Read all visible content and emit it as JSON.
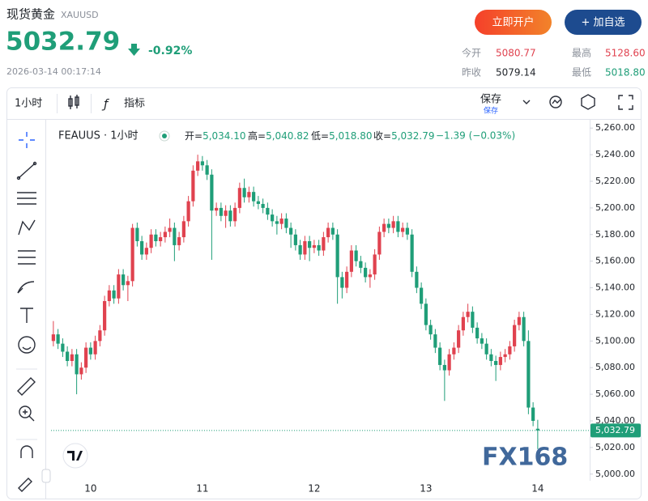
{
  "header": {
    "title": "现货黄金",
    "symbol": "XAUUSD",
    "price": "5032.79",
    "change": "-0.92%",
    "timestamp": "2026-03-14 00:17:14",
    "buttons": [
      "立即开户",
      "+ 加自选"
    ],
    "stats": [
      {
        "label": "今开",
        "value": "5080.77"
      },
      {
        "label": "最高",
        "value": "5128.60"
      },
      {
        "label": "昨收",
        "value": "5079.14"
      },
      {
        "label": "最低",
        "value": "5018.80"
      }
    ]
  },
  "toolbar": {
    "interval": "1小时",
    "indicators": "指标",
    "save": "保存",
    "save_sub": "保存"
  },
  "legend": {
    "symbol": "FEAUUS · 1小时",
    "ohlc": [
      {
        "label": "开=",
        "value": "5,034.10"
      },
      {
        "label": "高=",
        "value": "5,040.82"
      },
      {
        "label": "低=",
        "value": "5,018.80"
      },
      {
        "label": "收=",
        "value": "5,032.79"
      }
    ],
    "change": "−1.39 (−0.03%)"
  },
  "watermark": "FX168",
  "chart_data": {
    "type": "candlestick",
    "up_color": "#e0424f",
    "down_color": "#1f9e78",
    "categories": [
      null,
      null,
      null,
      null,
      null,
      null,
      null,
      null,
      "10",
      null,
      null,
      null,
      null,
      null,
      null,
      null,
      null,
      null,
      null,
      null,
      null,
      null,
      null,
      null,
      null,
      null,
      null,
      null,
      null,
      null,
      null,
      null,
      "11",
      null,
      null,
      null,
      null,
      null,
      null,
      null,
      null,
      null,
      null,
      null,
      null,
      null,
      null,
      null,
      null,
      null,
      null,
      null,
      null,
      null,
      null,
      null,
      "12",
      null,
      null,
      null,
      null,
      null,
      null,
      null,
      null,
      null,
      null,
      null,
      null,
      null,
      null,
      null,
      null,
      null,
      null,
      null,
      null,
      null,
      null,
      null,
      "13",
      null,
      null,
      null,
      null,
      null,
      null,
      null,
      null,
      null,
      null,
      null,
      null,
      null,
      null,
      null,
      null,
      null,
      null,
      null,
      null,
      null,
      null,
      null,
      "14"
    ],
    "open": [
      5100,
      5105,
      5098,
      5092,
      5085,
      5090,
      5075,
      5080,
      5095,
      5090,
      5100,
      5108,
      5130,
      5138,
      5132,
      5150,
      5142,
      5145,
      5185,
      5175,
      5165,
      5170,
      5180,
      5175,
      5178,
      5182,
      5185,
      5172,
      5178,
      5190,
      5205,
      5228,
      5235,
      5232,
      5225,
      5198,
      5200,
      5194,
      5198,
      5190,
      5200,
      5215,
      5208,
      5212,
      5205,
      5203,
      5200,
      5195,
      5190,
      5188,
      5192,
      5185,
      5180,
      5172,
      5165,
      5175,
      5170,
      5172,
      5168,
      5178,
      5185,
      5180,
      5148,
      5140,
      5152,
      5168,
      5160,
      5155,
      5148,
      5150,
      5165,
      5182,
      5188,
      5185,
      5190,
      5182,
      5185,
      5180,
      5152,
      5140,
      5128,
      5112,
      5105,
      5095,
      5082,
      5078,
      5090,
      5095,
      5108,
      5118,
      5122,
      5110,
      5102,
      5098,
      5090,
      5085,
      5082,
      5088,
      5090,
      5096,
      5112,
      5118,
      5100,
      5050,
      5034.1
    ],
    "high": [
      5115,
      5109,
      5102,
      5096,
      5094,
      5094,
      5084,
      5099,
      5099,
      5104,
      5112,
      5134,
      5142,
      5142,
      5154,
      5154,
      5149,
      5188,
      5189,
      5179,
      5174,
      5184,
      5184,
      5182,
      5186,
      5192,
      5189,
      5182,
      5194,
      5209,
      5232,
      5240,
      5239,
      5236,
      5229,
      5204,
      5204,
      5202,
      5202,
      5204,
      5219,
      5222,
      5216,
      5216,
      5209,
      5207,
      5204,
      5199,
      5194,
      5196,
      5196,
      5189,
      5184,
      5176,
      5179,
      5179,
      5176,
      5176,
      5182,
      5189,
      5189,
      5184,
      5152,
      5156,
      5172,
      5172,
      5164,
      5159,
      5154,
      5169,
      5186,
      5192,
      5192,
      5194,
      5194,
      5189,
      5189,
      5184,
      5156,
      5144,
      5132,
      5116,
      5109,
      5099,
      5086,
      5094,
      5099,
      5112,
      5122,
      5128,
      5126,
      5114,
      5106,
      5102,
      5094,
      5089,
      5092,
      5094,
      5100,
      5116,
      5122,
      5122,
      5108,
      5054,
      5040.82
    ],
    "low": [
      5096,
      5094,
      5088,
      5081,
      5081,
      5060,
      5071,
      5076,
      5086,
      5086,
      5096,
      5104,
      5126,
      5128,
      5128,
      5138,
      5130,
      5141,
      5171,
      5161,
      5161,
      5166,
      5171,
      5171,
      5174,
      5178,
      5160,
      5168,
      5174,
      5186,
      5201,
      5224,
      5228,
      5221,
      5161,
      5194,
      5190,
      5185,
      5186,
      5186,
      5196,
      5204,
      5204,
      5201,
      5199,
      5196,
      5191,
      5186,
      5180,
      5184,
      5181,
      5170,
      5168,
      5161,
      5161,
      5160,
      5166,
      5164,
      5164,
      5174,
      5176,
      5128,
      5132,
      5136,
      5148,
      5156,
      5151,
      5144,
      5140,
      5146,
      5161,
      5178,
      5181,
      5181,
      5178,
      5178,
      5176,
      5148,
      5136,
      5124,
      5108,
      5101,
      5091,
      5078,
      5055,
      5074,
      5086,
      5091,
      5104,
      5114,
      5106,
      5098,
      5094,
      5086,
      5081,
      5070,
      5078,
      5084,
      5086,
      5092,
      5108,
      5096,
      5045,
      5036,
      5018.8
    ],
    "close": [
      5105,
      5098,
      5092,
      5085,
      5090,
      5075,
      5080,
      5095,
      5090,
      5100,
      5108,
      5130,
      5138,
      5132,
      5150,
      5142,
      5145,
      5185,
      5175,
      5165,
      5170,
      5180,
      5175,
      5178,
      5182,
      5185,
      5172,
      5178,
      5190,
      5205,
      5228,
      5235,
      5232,
      5225,
      5198,
      5200,
      5194,
      5198,
      5190,
      5200,
      5215,
      5208,
      5212,
      5205,
      5203,
      5200,
      5195,
      5190,
      5188,
      5192,
      5185,
      5180,
      5172,
      5165,
      5175,
      5170,
      5172,
      5168,
      5178,
      5185,
      5180,
      5148,
      5140,
      5152,
      5168,
      5160,
      5155,
      5148,
      5150,
      5165,
      5182,
      5188,
      5185,
      5190,
      5182,
      5185,
      5180,
      5152,
      5140,
      5128,
      5112,
      5105,
      5095,
      5082,
      5078,
      5090,
      5095,
      5108,
      5118,
      5122,
      5110,
      5102,
      5098,
      5090,
      5085,
      5082,
      5088,
      5090,
      5096,
      5112,
      5118,
      5100,
      5050,
      5040,
      5032.79
    ],
    "last_price_label": "5,032.79",
    "ylim": [
      4995,
      5265
    ],
    "yticks": [
      {
        "value": 5000,
        "label": "5,000.00"
      },
      {
        "value": 5020,
        "label": "5,020.00"
      },
      {
        "value": 5040,
        "label": "5,040.00"
      },
      {
        "value": 5060,
        "label": "5,060.00"
      },
      {
        "value": 5080,
        "label": "5,080.00"
      },
      {
        "value": 5100,
        "label": "5,100.00"
      },
      {
        "value": 5120,
        "label": "5,120.00"
      },
      {
        "value": 5140,
        "label": "5,140.00"
      },
      {
        "value": 5160,
        "label": "5,160.00"
      },
      {
        "value": 5180,
        "label": "5,180.00"
      },
      {
        "value": 5200,
        "label": "5,200.00"
      },
      {
        "value": 5220,
        "label": "5,220.00"
      },
      {
        "value": 5240,
        "label": "5,240.00"
      },
      {
        "value": 5260,
        "label": "5,260.00"
      }
    ],
    "grid": false
  }
}
